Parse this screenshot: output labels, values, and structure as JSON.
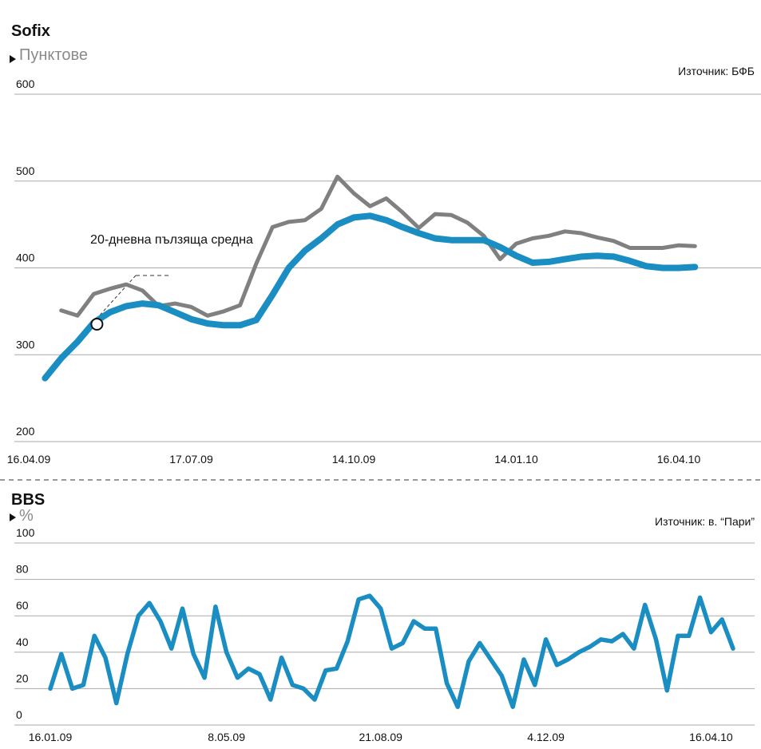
{
  "chart_data": [
    {
      "type": "line",
      "title": "Sofix",
      "subtitle": "Пунктове",
      "source": "Източник: БФБ",
      "annotation": "20-дневна пълзяща средна",
      "categories": [
        "16.04.09",
        null,
        null,
        null,
        null,
        null,
        null,
        null,
        null,
        null,
        "17.07.09",
        null,
        null,
        null,
        null,
        null,
        null,
        null,
        null,
        null,
        "14.10.09",
        null,
        null,
        null,
        null,
        null,
        null,
        null,
        null,
        null,
        "14.01.10",
        null,
        null,
        null,
        null,
        null,
        null,
        null,
        null,
        null,
        "16.04.10",
        null
      ],
      "series": [
        {
          "color": "#808080",
          "values": [
            null,
            null,
            351,
            345,
            370,
            376,
            381,
            374,
            356,
            359,
            355,
            345,
            350,
            357,
            405,
            447,
            453,
            455,
            468,
            505,
            486,
            471,
            480,
            464,
            446,
            462,
            461,
            452,
            437,
            410,
            428,
            434,
            437,
            442,
            440,
            435,
            431,
            423,
            423,
            423,
            426,
            425
          ]
        },
        {
          "color": "#1a8ec2",
          "values": [
            null,
            273,
            296,
            315,
            337,
            349,
            356,
            359,
            357,
            349,
            341,
            336,
            334,
            334,
            340,
            369,
            400,
            420,
            434,
            450,
            458,
            460,
            455,
            447,
            440,
            434,
            432,
            432,
            432,
            424,
            414,
            406,
            407,
            410,
            413,
            414,
            413,
            408,
            402,
            400,
            400,
            401
          ]
        }
      ],
      "ylim": [
        200,
        600
      ],
      "yticks": [
        200,
        300,
        400,
        500,
        600
      ],
      "grid": true
    },
    {
      "type": "line",
      "title": "BBS",
      "subtitle": "%",
      "source": "Източник: в. “Пари”",
      "categories": [
        "16.01.09",
        null,
        null,
        null,
        null,
        null,
        null,
        null,
        null,
        null,
        null,
        null,
        null,
        null,
        null,
        null,
        "8.05.09",
        null,
        null,
        null,
        null,
        null,
        null,
        null,
        null,
        null,
        null,
        null,
        null,
        null,
        "21.08.09",
        null,
        null,
        null,
        null,
        null,
        null,
        null,
        null,
        null,
        null,
        null,
        null,
        null,
        null,
        "4.12.09",
        null,
        null,
        null,
        null,
        null,
        null,
        null,
        null,
        null,
        null,
        null,
        null,
        null,
        null,
        "16.04.10",
        null,
        null
      ],
      "series": [
        {
          "color": "#1a8ec2",
          "values": [
            20,
            39,
            20,
            22,
            49,
            37,
            12,
            39,
            60,
            67,
            57,
            42,
            64,
            39,
            26,
            65,
            40,
            26,
            31,
            28,
            14,
            37,
            22,
            20,
            14,
            30,
            31,
            46,
            69,
            71,
            64,
            42,
            45,
            57,
            53,
            53,
            23,
            10,
            35,
            45,
            36,
            27,
            10,
            36,
            22,
            47,
            33,
            36,
            40,
            43,
            47,
            46,
            50,
            42,
            66,
            47,
            19,
            49,
            49,
            70,
            51,
            58,
            42
          ]
        }
      ],
      "ylim": [
        0,
        100
      ],
      "yticks": [
        0,
        20,
        40,
        60,
        80,
        100
      ],
      "grid": true
    }
  ]
}
